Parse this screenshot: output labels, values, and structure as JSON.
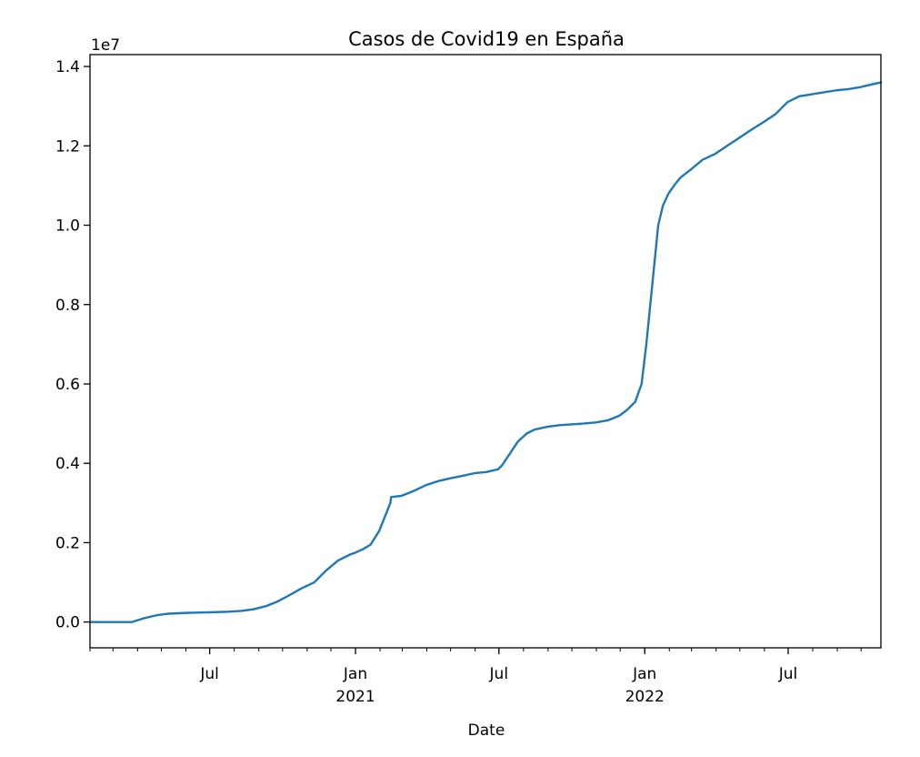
{
  "chart_data": {
    "type": "line",
    "title": "Casos de Covid19 en España",
    "xlabel": "Date",
    "ylabel": "",
    "y_offset_label": "1e7",
    "xlim": [
      "2020-02-01",
      "2022-10-26"
    ],
    "ylim": [
      -0.065,
      1.43
    ],
    "y_multiplier": 10000000,
    "grid": false,
    "x_ticks": [
      {
        "date": "2020-07-01",
        "label": "Jul",
        "sublabel": ""
      },
      {
        "date": "2021-01-01",
        "label": "Jan",
        "sublabel": "2021"
      },
      {
        "date": "2021-07-01",
        "label": "Jul",
        "sublabel": ""
      },
      {
        "date": "2022-01-01",
        "label": "Jan",
        "sublabel": "2022"
      },
      {
        "date": "2022-07-01",
        "label": "Jul",
        "sublabel": ""
      }
    ],
    "y_ticks": [
      {
        "value": 0.0,
        "label": "0.0"
      },
      {
        "value": 0.2,
        "label": "0.2"
      },
      {
        "value": 0.4,
        "label": "0.4"
      },
      {
        "value": 0.6,
        "label": "0.6"
      },
      {
        "value": 0.8,
        "label": "0.8"
      },
      {
        "value": 1.0,
        "label": "1.0"
      },
      {
        "value": 1.2,
        "label": "1.2"
      },
      {
        "value": 1.4,
        "label": "1.4"
      }
    ],
    "series": [
      {
        "color": "#1f77b4",
        "x": [
          "2020-02-01",
          "2020-02-20",
          "2020-03-10",
          "2020-03-25",
          "2020-04-10",
          "2020-04-25",
          "2020-05-10",
          "2020-06-01",
          "2020-06-20",
          "2020-07-10",
          "2020-07-25",
          "2020-08-10",
          "2020-08-25",
          "2020-09-10",
          "2020-09-25",
          "2020-10-10",
          "2020-10-25",
          "2020-11-10",
          "2020-11-25",
          "2020-12-10",
          "2020-12-25",
          "2021-01-01",
          "2021-01-10",
          "2021-01-20",
          "2021-01-31",
          "2021-02-10",
          "2021-02-14",
          "2021-02-15",
          "2021-02-28",
          "2021-03-15",
          "2021-03-31",
          "2021-04-15",
          "2021-04-30",
          "2021-05-15",
          "2021-05-31",
          "2021-06-15",
          "2021-06-30",
          "2021-07-05",
          "2021-07-15",
          "2021-07-25",
          "2021-08-05",
          "2021-08-15",
          "2021-08-31",
          "2021-09-15",
          "2021-09-30",
          "2021-10-15",
          "2021-10-31",
          "2021-11-15",
          "2021-11-30",
          "2021-12-10",
          "2021-12-20",
          "2021-12-28",
          "2022-01-03",
          "2022-01-08",
          "2022-01-13",
          "2022-01-18",
          "2022-01-24",
          "2022-01-31",
          "2022-02-07",
          "2022-02-15",
          "2022-02-28",
          "2022-03-15",
          "2022-03-31",
          "2022-04-15",
          "2022-04-30",
          "2022-05-15",
          "2022-05-31",
          "2022-06-15",
          "2022-06-30",
          "2022-07-15",
          "2022-07-31",
          "2022-08-15",
          "2022-08-31",
          "2022-09-15",
          "2022-09-30",
          "2022-10-15",
          "2022-10-26"
        ],
        "values": [
          0.0,
          0.0,
          0.0,
          0.0,
          0.01,
          0.017,
          0.021,
          0.023,
          0.024,
          0.025,
          0.026,
          0.028,
          0.032,
          0.04,
          0.052,
          0.068,
          0.085,
          0.1,
          0.13,
          0.155,
          0.17,
          0.175,
          0.183,
          0.195,
          0.23,
          0.28,
          0.3,
          0.315,
          0.318,
          0.33,
          0.345,
          0.355,
          0.362,
          0.368,
          0.375,
          0.378,
          0.385,
          0.395,
          0.425,
          0.455,
          0.475,
          0.485,
          0.492,
          0.496,
          0.498,
          0.5,
          0.503,
          0.508,
          0.52,
          0.535,
          0.555,
          0.6,
          0.7,
          0.8,
          0.9,
          1.0,
          1.05,
          1.08,
          1.1,
          1.12,
          1.14,
          1.165,
          1.18,
          1.2,
          1.22,
          1.24,
          1.26,
          1.28,
          1.31,
          1.325,
          1.33,
          1.335,
          1.34,
          1.343,
          1.348,
          1.355,
          1.36
        ]
      }
    ]
  }
}
